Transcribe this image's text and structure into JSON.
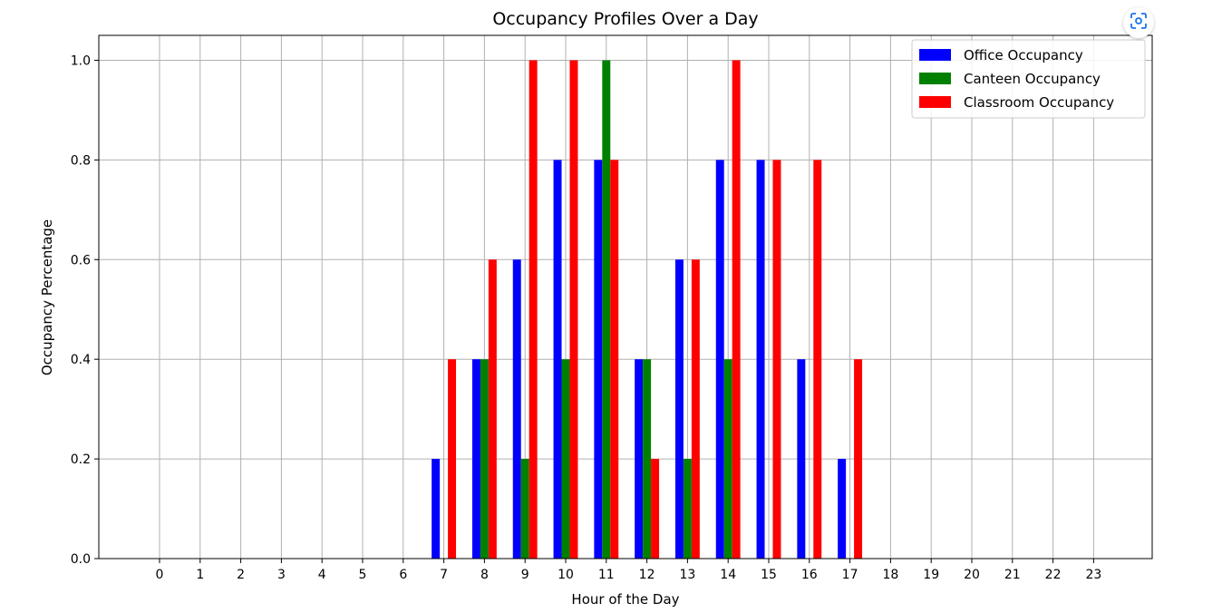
{
  "chart_data": {
    "type": "bar",
    "title": "Occupancy Profiles Over a Day",
    "xlabel": "Hour of the Day",
    "ylabel": "Occupancy Percentage",
    "categories": [
      "0",
      "1",
      "2",
      "3",
      "4",
      "5",
      "6",
      "7",
      "8",
      "9",
      "10",
      "11",
      "12",
      "13",
      "14",
      "15",
      "16",
      "17",
      "18",
      "19",
      "20",
      "21",
      "22",
      "23"
    ],
    "yticks": [
      "0.0",
      "0.2",
      "0.4",
      "0.6",
      "0.8",
      "1.0"
    ],
    "ylim": [
      0,
      1.05
    ],
    "grid": true,
    "legend_position": "upper right",
    "series": [
      {
        "name": "Office Occupancy",
        "color": "#0000ff",
        "values": [
          0,
          0,
          0,
          0,
          0,
          0,
          0,
          0.2,
          0.4,
          0.6,
          0.8,
          0.8,
          0.4,
          0.6,
          0.8,
          0.8,
          0.4,
          0.2,
          0,
          0,
          0,
          0,
          0,
          0
        ]
      },
      {
        "name": "Canteen Occupancy",
        "color": "#008000",
        "values": [
          0,
          0,
          0,
          0,
          0,
          0,
          0,
          0,
          0.4,
          0.2,
          0.4,
          1.0,
          0.4,
          0.2,
          0.4,
          0,
          0,
          0,
          0,
          0,
          0,
          0,
          0,
          0
        ]
      },
      {
        "name": "Classroom Occupancy",
        "color": "#ff0000",
        "values": [
          0,
          0,
          0,
          0,
          0,
          0,
          0,
          0.4,
          0.6,
          1.0,
          1.0,
          0.8,
          0.2,
          0.6,
          1.0,
          0.8,
          0.8,
          0.4,
          0,
          0,
          0,
          0,
          0,
          0
        ]
      }
    ]
  },
  "toolbar": {
    "lens_icon": "lens-scan-icon"
  }
}
